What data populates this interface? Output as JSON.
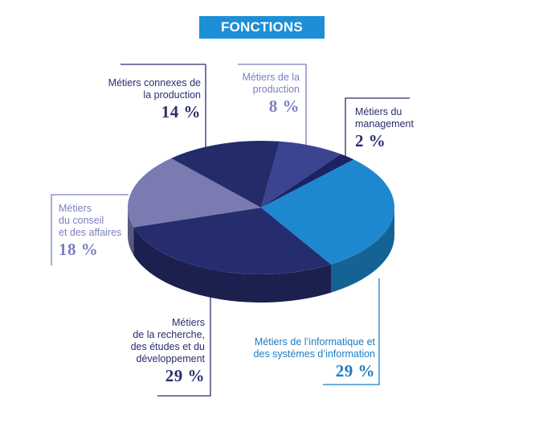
{
  "title": "FONCTIONS",
  "colors": {
    "banner": "#1c8fd6",
    "label_dark": "#2b2e6e",
    "label_lavender": "#7b7fc0",
    "label_blue": "#1c7cc2"
  },
  "chart_data": {
    "type": "pie",
    "style": "3d",
    "title": "FONCTIONS",
    "slices": [
      {
        "label": "Métiers de la production",
        "value": 8,
        "display": "8 %",
        "color": "#3c4391"
      },
      {
        "label": "Métiers du management",
        "value": 2,
        "display": "2 %",
        "color": "#1b2363"
      },
      {
        "label": "Métiers de l’informatique et des systèmes d’information",
        "value": 29,
        "display": "29 %",
        "color": "#1d88cf"
      },
      {
        "label": "Métiers de la recherche, des études et du développement",
        "value": 29,
        "display": "29 %",
        "color": "#252d6e"
      },
      {
        "label": "Métiers du conseil et des affaires",
        "value": 18,
        "display": "18 %",
        "color": "#7a7bb0"
      },
      {
        "label": "Métiers connexes de la production",
        "value": 14,
        "display": "14 %",
        "color": "#242b69"
      }
    ]
  },
  "labels": {
    "production": {
      "lines": [
        "Métiers de la",
        "production"
      ],
      "pct": "8 %"
    },
    "management": {
      "lines": [
        "Métiers du",
        "management"
      ],
      "pct": "2 %"
    },
    "informatique": {
      "lines": [
        "Métiers de l’informatique et",
        "des systèmes d’information"
      ],
      "pct": "29 %"
    },
    "recherche": {
      "lines": [
        "Métiers",
        "de la recherche,",
        "des études et du",
        "développement"
      ],
      "pct": "29 %"
    },
    "conseil": {
      "lines": [
        "Métiers",
        "du conseil",
        "et des affaires"
      ],
      "pct": "18 %"
    },
    "connexes": {
      "lines": [
        "Métiers connexes de",
        "la production"
      ],
      "pct": "14 %"
    }
  }
}
